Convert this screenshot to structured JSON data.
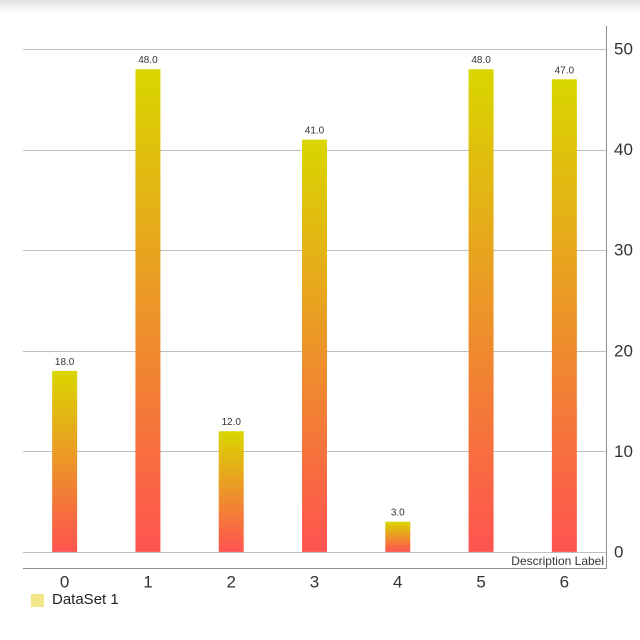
{
  "chart_data": {
    "type": "bar",
    "categories": [
      "0",
      "1",
      "2",
      "3",
      "4",
      "5",
      "6"
    ],
    "series": [
      {
        "name": "DataSet 1",
        "values": [
          18,
          48,
          12,
          41,
          3,
          48,
          47
        ],
        "data_labels": [
          "18.0",
          "48.0",
          "12.0",
          "41.0",
          "3.0",
          "48.0",
          "47.0"
        ]
      }
    ],
    "yticks": [
      0,
      10,
      20,
      30,
      40,
      50
    ],
    "ylim": [
      -1.6,
      52.3
    ],
    "y_axis_position": "right",
    "y_grid": true,
    "x_grid": false,
    "legend_position": "bottom-left",
    "description": "Description Label",
    "colors": {
      "bar_gradient_top": "#d9d600",
      "bar_gradient_bottom": "#ff5350",
      "legend_swatch": "#f2e68a"
    }
  }
}
